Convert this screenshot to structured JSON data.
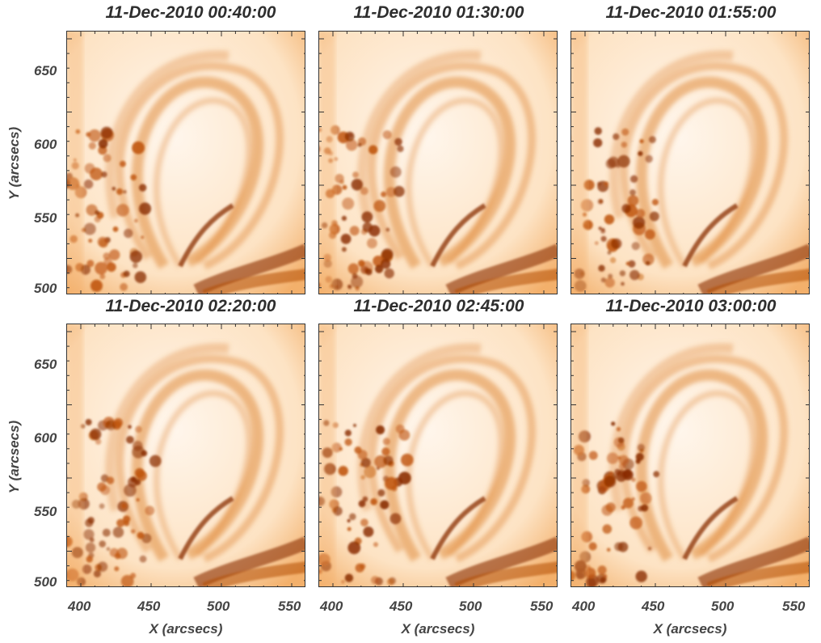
{
  "panels": [
    {
      "title": "11-Dec-2010 00:40:00"
    },
    {
      "title": "11-Dec-2010 01:30:00"
    },
    {
      "title": "11-Dec-2010 01:55:00"
    },
    {
      "title": "11-Dec-2010 02:20:00"
    },
    {
      "title": "11-Dec-2010 02:45:00"
    },
    {
      "title": "11-Dec-2010 03:00:00"
    }
  ],
  "axes": {
    "xlabel": "X (arcsecs)",
    "ylabel": "Y (arcsecs)",
    "xticks": [
      "400",
      "450",
      "500",
      "550"
    ],
    "yticks": [
      "650",
      "600",
      "550",
      "500"
    ],
    "xrange": [
      390,
      560
    ],
    "yrange": [
      495,
      675
    ]
  },
  "colors": {
    "background": "#ffffff",
    "image_light": "#fff6ec",
    "image_mid": "#f3b06b",
    "image_dark": "#8a2c00"
  }
}
